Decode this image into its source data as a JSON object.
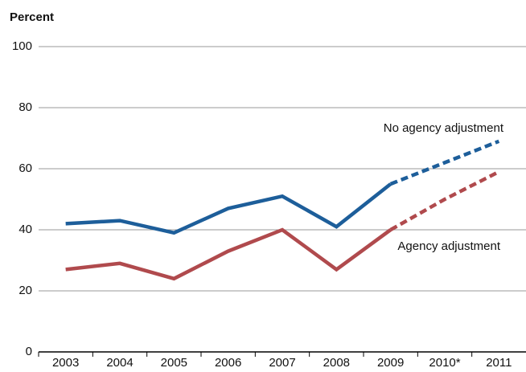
{
  "chart_data": {
    "type": "line",
    "y_label": "Percent",
    "categories": [
      "2003",
      "2004",
      "2005",
      "2006",
      "2007",
      "2008",
      "2009",
      "2010*",
      "2011"
    ],
    "projected": [
      "2010*",
      "2011"
    ],
    "series": [
      {
        "name": "No agency adjustment",
        "color": "#1d5e9a",
        "values": [
          42,
          43,
          39,
          47,
          51,
          41,
          55,
          62,
          69
        ]
      },
      {
        "name": "Agency adjustment",
        "color": "#b04a4d",
        "values": [
          27,
          29,
          24,
          33,
          40,
          27,
          40,
          50,
          59
        ]
      }
    ],
    "ylim": [
      0,
      100
    ],
    "yticks": [
      0,
      20,
      40,
      60,
      80,
      100
    ],
    "grid": true
  }
}
